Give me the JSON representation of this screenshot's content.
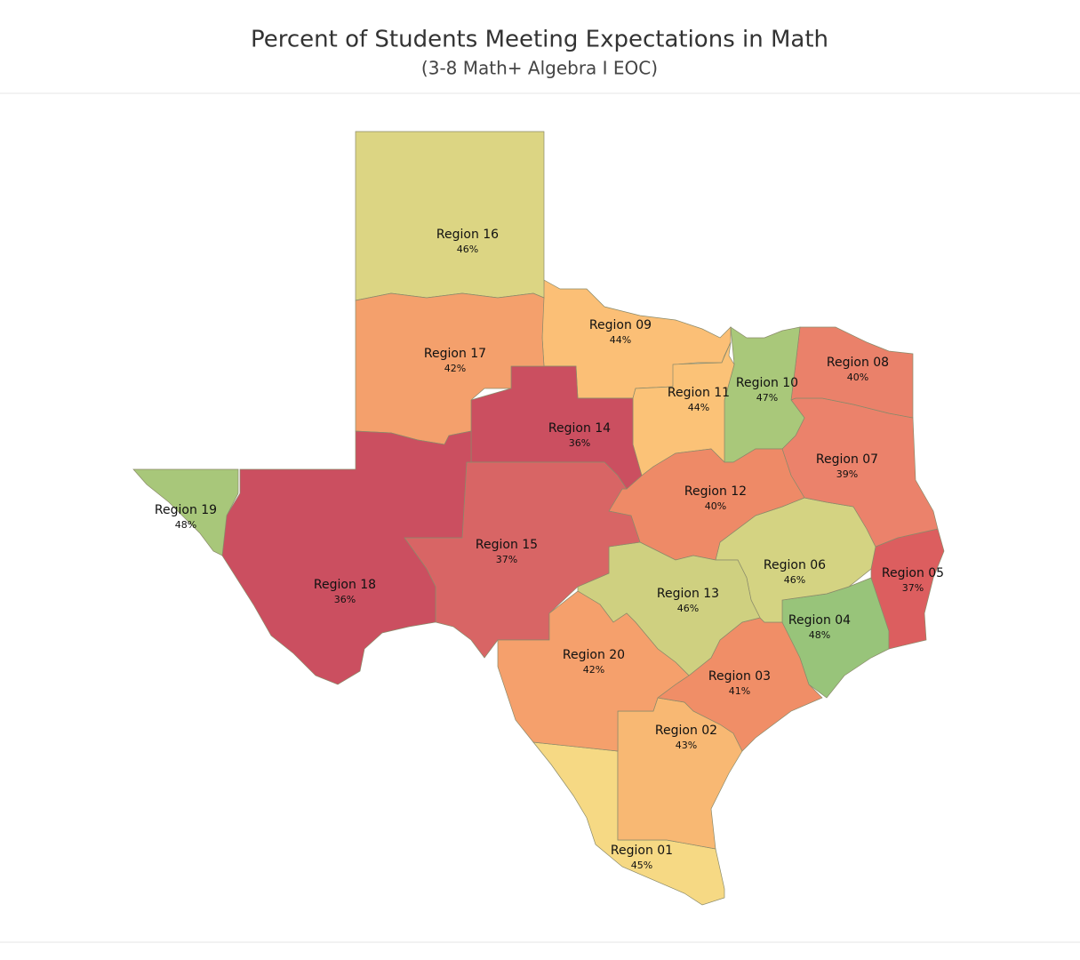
{
  "title": "Percent of Students Meeting Expectations in Math",
  "subtitle": "(3-8 Math+ Algebra I EOC)",
  "regions": [
    {
      "name": "Region 01",
      "value": 45,
      "label": "45%",
      "color": "#f6d984"
    },
    {
      "name": "Region 02",
      "value": 43,
      "label": "43%",
      "color": "#f8b873"
    },
    {
      "name": "Region 03",
      "value": 41,
      "label": "41%",
      "color": "#f08e67"
    },
    {
      "name": "Region 04",
      "value": 48,
      "label": "48%",
      "color": "#98c47a"
    },
    {
      "name": "Region 05",
      "value": 37,
      "label": "37%",
      "color": "#dc5e5f"
    },
    {
      "name": "Region 06",
      "value": 46,
      "label": "46%",
      "color": "#d4d382"
    },
    {
      "name": "Region 07",
      "value": 39,
      "label": "39%",
      "color": "#eb826b"
    },
    {
      "name": "Region 08",
      "value": 40,
      "label": "40%",
      "color": "#ea816a"
    },
    {
      "name": "Region 09",
      "value": 44,
      "label": "44%",
      "color": "#fbbf76"
    },
    {
      "name": "Region 10",
      "value": 47,
      "label": "47%",
      "color": "#a9c87a"
    },
    {
      "name": "Region 11",
      "value": 44,
      "label": "44%",
      "color": "#fbc277"
    },
    {
      "name": "Region 12",
      "value": 40,
      "label": "40%",
      "color": "#ee8a67"
    },
    {
      "name": "Region 13",
      "value": 46,
      "label": "46%",
      "color": "#cfd080"
    },
    {
      "name": "Region 14",
      "value": 36,
      "label": "36%",
      "color": "#cb4f60"
    },
    {
      "name": "Region 15",
      "value": 37,
      "label": "37%",
      "color": "#d86565"
    },
    {
      "name": "Region 16",
      "value": 46,
      "label": "46%",
      "color": "#dcd583"
    },
    {
      "name": "Region 17",
      "value": 42,
      "label": "42%",
      "color": "#f4a06c"
    },
    {
      "name": "Region 18",
      "value": 36,
      "label": "36%",
      "color": "#cb4f60"
    },
    {
      "name": "Region 19",
      "value": 48,
      "label": "48%",
      "color": "#a8c77a"
    },
    {
      "name": "Region 20",
      "value": 42,
      "label": "42%",
      "color": "#f5a06c"
    }
  ]
}
